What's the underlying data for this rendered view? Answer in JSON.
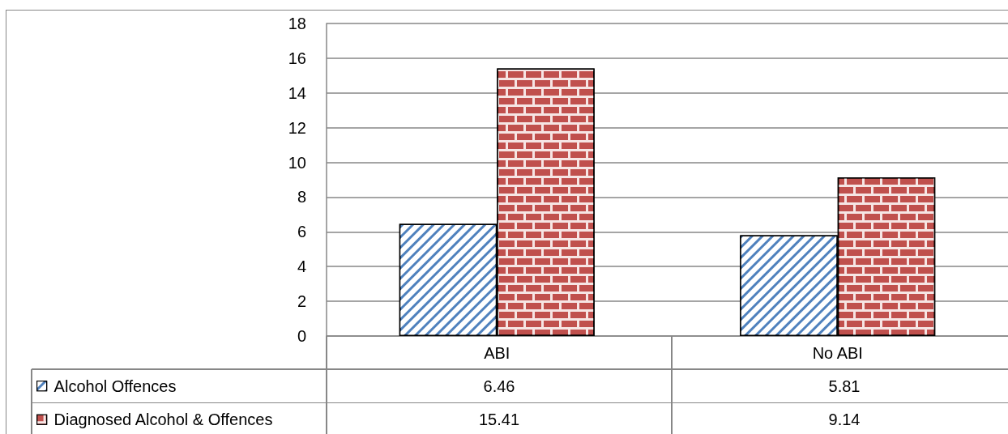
{
  "chart_data": {
    "type": "bar",
    "categories": [
      "ABI",
      "No ABI"
    ],
    "series": [
      {
        "name": "Alcohol Offences",
        "color": "#4f81bd",
        "values": [
          6.46,
          5.81
        ]
      },
      {
        "name": "Diagnosed Alcohol & Offences",
        "color": "#c0504d",
        "values": [
          15.41,
          9.14
        ]
      }
    ],
    "ylim": [
      0,
      18
    ],
    "yticks": [
      0,
      2,
      4,
      6,
      8,
      10,
      12,
      14,
      16,
      18
    ],
    "grid": "y",
    "legend": "bottom left",
    "data_labels": true
  }
}
